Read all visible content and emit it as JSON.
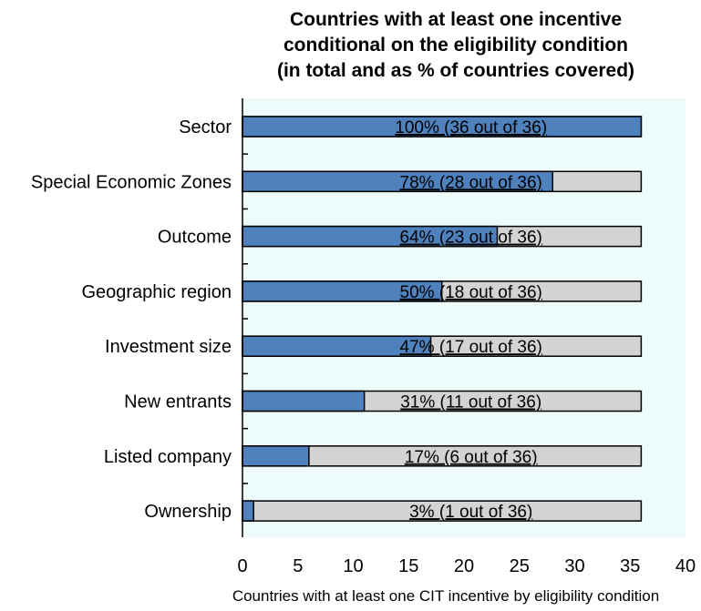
{
  "chart_data": {
    "type": "bar",
    "orientation": "horizontal",
    "title_lines": [
      "Countries with at least one incentive",
      "conditional on the eligibility condition",
      "(in total and as % of countries covered)"
    ],
    "xlabel": "Countries with at least one CIT incentive by eligibility condition",
    "ylabel": "",
    "xlim": [
      0,
      40
    ],
    "xticks": [
      0,
      5,
      10,
      15,
      20,
      25,
      30,
      35,
      40
    ],
    "categories": [
      "Sector",
      "Special Economic Zones",
      "Outcome",
      "Geographic region",
      "Investment size",
      "New entrants",
      "Listed company",
      "Ownership"
    ],
    "series": [
      {
        "values": [
          36,
          28,
          23,
          18,
          17,
          11,
          6,
          1
        ]
      },
      {
        "values": [
          36,
          36,
          36,
          36,
          36,
          36,
          36,
          36
        ]
      }
    ],
    "data_labels": [
      "100% (36 out of 36)",
      "78% (28 out of 36)",
      "64% (23 out of 36)",
      "50% (18 out of 36)",
      "47% (17 out of 36)",
      "31% (11 out of 36)",
      "17% (6 out of 36)",
      "3% (1 out of 36)"
    ],
    "colors": {
      "plot_background": "#eefbfb",
      "filled": "#4f81bd",
      "total": "#d3d3d3",
      "outline": "#000000"
    },
    "grid": false,
    "legend": "none"
  }
}
